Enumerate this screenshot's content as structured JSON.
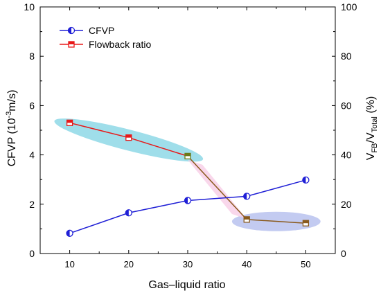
{
  "chart_data": {
    "type": "line",
    "x": [
      10,
      20,
      30,
      40,
      50
    ],
    "xlabel": "Gas–liquid ratio",
    "xlim": [
      5,
      55
    ],
    "x_ticks": [
      10,
      20,
      30,
      40,
      50
    ],
    "ylabel_left": {
      "base": "CFVP (10",
      "exp": "-3",
      "rest": "m/s)"
    },
    "ylabel_right": {
      "v1": "V",
      "sub1": "FB",
      "slash": "/V",
      "sub2": "Total",
      "rest": " (%)"
    },
    "ylim_left": [
      0,
      10
    ],
    "ylim_right": [
      0,
      100
    ],
    "y_ticks_left": [
      0,
      2,
      4,
      6,
      8,
      10
    ],
    "y_ticks_right": [
      0,
      20,
      40,
      60,
      80,
      100
    ],
    "grid": false,
    "legend_position": "top-left",
    "series": [
      {
        "name": "CFVP",
        "axis": "left",
        "color": "#1f1fd6",
        "marker": "half-filled-circle",
        "values": [
          0.82,
          1.65,
          2.15,
          2.32,
          2.98
        ]
      },
      {
        "name": "Flowback ratio",
        "axis": "right",
        "color": "#e81818",
        "marker": "half-filled-square",
        "values": [
          53,
          47,
          39.5,
          13.8,
          12.3
        ]
      }
    ],
    "highlight_colors": {
      "cyan": "#7fd3e3",
      "lavender": "#b9c2ee",
      "pink": "#f7cde6",
      "brown_line": "#8a5a1c",
      "olive_marker": "#6b7a1a"
    }
  }
}
